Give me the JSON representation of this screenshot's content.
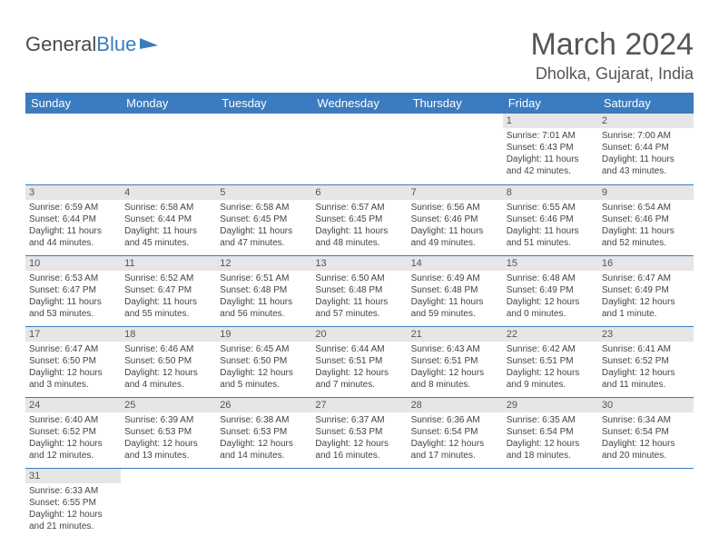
{
  "brand": {
    "word1": "General",
    "word2": "Blue"
  },
  "title": "March 2024",
  "location": "Dholka, Gujarat, India",
  "colors": {
    "header_bg": "#3b7bbf",
    "header_fg": "#ffffff",
    "daynum_bg": "#e6e6e6",
    "row_border": "#3b7bbf",
    "text": "#444444",
    "title_color": "#555555"
  },
  "fonts": {
    "title_pt": 34,
    "location_pt": 18,
    "dayhead_pt": 13,
    "cell_pt": 10
  },
  "day_headers": [
    "Sunday",
    "Monday",
    "Tuesday",
    "Wednesday",
    "Thursday",
    "Friday",
    "Saturday"
  ],
  "weeks": [
    [
      null,
      null,
      null,
      null,
      null,
      {
        "n": "1",
        "sr": "Sunrise: 7:01 AM",
        "ss": "Sunset: 6:43 PM",
        "dl1": "Daylight: 11 hours",
        "dl2": "and 42 minutes."
      },
      {
        "n": "2",
        "sr": "Sunrise: 7:00 AM",
        "ss": "Sunset: 6:44 PM",
        "dl1": "Daylight: 11 hours",
        "dl2": "and 43 minutes."
      }
    ],
    [
      {
        "n": "3",
        "sr": "Sunrise: 6:59 AM",
        "ss": "Sunset: 6:44 PM",
        "dl1": "Daylight: 11 hours",
        "dl2": "and 44 minutes."
      },
      {
        "n": "4",
        "sr": "Sunrise: 6:58 AM",
        "ss": "Sunset: 6:44 PM",
        "dl1": "Daylight: 11 hours",
        "dl2": "and 45 minutes."
      },
      {
        "n": "5",
        "sr": "Sunrise: 6:58 AM",
        "ss": "Sunset: 6:45 PM",
        "dl1": "Daylight: 11 hours",
        "dl2": "and 47 minutes."
      },
      {
        "n": "6",
        "sr": "Sunrise: 6:57 AM",
        "ss": "Sunset: 6:45 PM",
        "dl1": "Daylight: 11 hours",
        "dl2": "and 48 minutes."
      },
      {
        "n": "7",
        "sr": "Sunrise: 6:56 AM",
        "ss": "Sunset: 6:46 PM",
        "dl1": "Daylight: 11 hours",
        "dl2": "and 49 minutes."
      },
      {
        "n": "8",
        "sr": "Sunrise: 6:55 AM",
        "ss": "Sunset: 6:46 PM",
        "dl1": "Daylight: 11 hours",
        "dl2": "and 51 minutes."
      },
      {
        "n": "9",
        "sr": "Sunrise: 6:54 AM",
        "ss": "Sunset: 6:46 PM",
        "dl1": "Daylight: 11 hours",
        "dl2": "and 52 minutes."
      }
    ],
    [
      {
        "n": "10",
        "sr": "Sunrise: 6:53 AM",
        "ss": "Sunset: 6:47 PM",
        "dl1": "Daylight: 11 hours",
        "dl2": "and 53 minutes."
      },
      {
        "n": "11",
        "sr": "Sunrise: 6:52 AM",
        "ss": "Sunset: 6:47 PM",
        "dl1": "Daylight: 11 hours",
        "dl2": "and 55 minutes."
      },
      {
        "n": "12",
        "sr": "Sunrise: 6:51 AM",
        "ss": "Sunset: 6:48 PM",
        "dl1": "Daylight: 11 hours",
        "dl2": "and 56 minutes."
      },
      {
        "n": "13",
        "sr": "Sunrise: 6:50 AM",
        "ss": "Sunset: 6:48 PM",
        "dl1": "Daylight: 11 hours",
        "dl2": "and 57 minutes."
      },
      {
        "n": "14",
        "sr": "Sunrise: 6:49 AM",
        "ss": "Sunset: 6:48 PM",
        "dl1": "Daylight: 11 hours",
        "dl2": "and 59 minutes."
      },
      {
        "n": "15",
        "sr": "Sunrise: 6:48 AM",
        "ss": "Sunset: 6:49 PM",
        "dl1": "Daylight: 12 hours",
        "dl2": "and 0 minutes."
      },
      {
        "n": "16",
        "sr": "Sunrise: 6:47 AM",
        "ss": "Sunset: 6:49 PM",
        "dl1": "Daylight: 12 hours",
        "dl2": "and 1 minute."
      }
    ],
    [
      {
        "n": "17",
        "sr": "Sunrise: 6:47 AM",
        "ss": "Sunset: 6:50 PM",
        "dl1": "Daylight: 12 hours",
        "dl2": "and 3 minutes."
      },
      {
        "n": "18",
        "sr": "Sunrise: 6:46 AM",
        "ss": "Sunset: 6:50 PM",
        "dl1": "Daylight: 12 hours",
        "dl2": "and 4 minutes."
      },
      {
        "n": "19",
        "sr": "Sunrise: 6:45 AM",
        "ss": "Sunset: 6:50 PM",
        "dl1": "Daylight: 12 hours",
        "dl2": "and 5 minutes."
      },
      {
        "n": "20",
        "sr": "Sunrise: 6:44 AM",
        "ss": "Sunset: 6:51 PM",
        "dl1": "Daylight: 12 hours",
        "dl2": "and 7 minutes."
      },
      {
        "n": "21",
        "sr": "Sunrise: 6:43 AM",
        "ss": "Sunset: 6:51 PM",
        "dl1": "Daylight: 12 hours",
        "dl2": "and 8 minutes."
      },
      {
        "n": "22",
        "sr": "Sunrise: 6:42 AM",
        "ss": "Sunset: 6:51 PM",
        "dl1": "Daylight: 12 hours",
        "dl2": "and 9 minutes."
      },
      {
        "n": "23",
        "sr": "Sunrise: 6:41 AM",
        "ss": "Sunset: 6:52 PM",
        "dl1": "Daylight: 12 hours",
        "dl2": "and 11 minutes."
      }
    ],
    [
      {
        "n": "24",
        "sr": "Sunrise: 6:40 AM",
        "ss": "Sunset: 6:52 PM",
        "dl1": "Daylight: 12 hours",
        "dl2": "and 12 minutes."
      },
      {
        "n": "25",
        "sr": "Sunrise: 6:39 AM",
        "ss": "Sunset: 6:53 PM",
        "dl1": "Daylight: 12 hours",
        "dl2": "and 13 minutes."
      },
      {
        "n": "26",
        "sr": "Sunrise: 6:38 AM",
        "ss": "Sunset: 6:53 PM",
        "dl1": "Daylight: 12 hours",
        "dl2": "and 14 minutes."
      },
      {
        "n": "27",
        "sr": "Sunrise: 6:37 AM",
        "ss": "Sunset: 6:53 PM",
        "dl1": "Daylight: 12 hours",
        "dl2": "and 16 minutes."
      },
      {
        "n": "28",
        "sr": "Sunrise: 6:36 AM",
        "ss": "Sunset: 6:54 PM",
        "dl1": "Daylight: 12 hours",
        "dl2": "and 17 minutes."
      },
      {
        "n": "29",
        "sr": "Sunrise: 6:35 AM",
        "ss": "Sunset: 6:54 PM",
        "dl1": "Daylight: 12 hours",
        "dl2": "and 18 minutes."
      },
      {
        "n": "30",
        "sr": "Sunrise: 6:34 AM",
        "ss": "Sunset: 6:54 PM",
        "dl1": "Daylight: 12 hours",
        "dl2": "and 20 minutes."
      }
    ],
    [
      {
        "n": "31",
        "sr": "Sunrise: 6:33 AM",
        "ss": "Sunset: 6:55 PM",
        "dl1": "Daylight: 12 hours",
        "dl2": "and 21 minutes."
      },
      null,
      null,
      null,
      null,
      null,
      null
    ]
  ]
}
